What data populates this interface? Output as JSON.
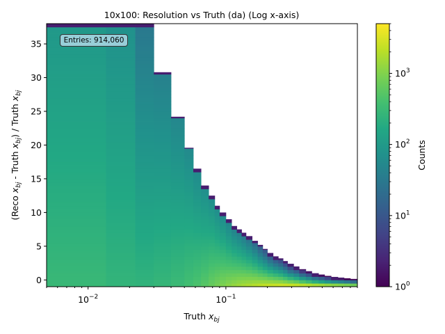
{
  "chart_data": {
    "type": "heatmap",
    "title": "10x100: Resolution vs Truth (da) (Log x-axis)",
    "xlabel": "Truth x_bj",
    "ylabel": "(Reco x_bj - Truth x_bj) / Truth x_bj",
    "xscale": "log",
    "xlim": [
      0.005,
      0.9
    ],
    "ylim": [
      -1,
      38
    ],
    "x_ticks": [
      {
        "value": 0.01,
        "base": "10",
        "exp": "−2"
      },
      {
        "value": 0.1,
        "base": "10",
        "exp": "−1"
      }
    ],
    "y_ticks": [
      "0",
      "5",
      "10",
      "15",
      "20",
      "25",
      "30",
      "35"
    ],
    "colorbar": {
      "label": "Counts",
      "scale": "log",
      "range": [
        1,
        5000
      ],
      "ticks": [
        {
          "value": 1,
          "base": "10",
          "exp": "0"
        },
        {
          "value": 10,
          "base": "10",
          "exp": "1"
        },
        {
          "value": 100,
          "base": "10",
          "exp": "2"
        },
        {
          "value": 1000,
          "base": "10",
          "exp": "3"
        }
      ],
      "colormap": "viridis"
    },
    "entries_label": "Entries: 914,060",
    "columns": [
      {
        "x0": 0.005,
        "x1": 0.0135,
        "ymax": 38,
        "low": 90,
        "high": 300
      },
      {
        "x0": 0.0135,
        "x1": 0.022,
        "ymax": 38,
        "low": 70,
        "high": 260
      },
      {
        "x0": 0.022,
        "x1": 0.03,
        "ymax": 38,
        "low": 30,
        "high": 250
      },
      {
        "x0": 0.03,
        "x1": 0.04,
        "ymax": 30.8,
        "low": 40,
        "high": 280
      },
      {
        "x0": 0.04,
        "x1": 0.05,
        "ymax": 24.2,
        "low": 50,
        "high": 320
      },
      {
        "x0": 0.05,
        "x1": 0.058,
        "ymax": 19.6,
        "low": 55,
        "high": 380
      },
      {
        "x0": 0.058,
        "x1": 0.066,
        "ymax": 16.5,
        "low": 55,
        "high": 450
      },
      {
        "x0": 0.066,
        "x1": 0.075,
        "ymax": 14.0,
        "low": 60,
        "high": 550
      },
      {
        "x0": 0.075,
        "x1": 0.083,
        "ymax": 12.5,
        "low": 60,
        "high": 700
      },
      {
        "x0": 0.083,
        "x1": 0.09,
        "ymax": 11.0,
        "low": 55,
        "high": 850
      },
      {
        "x0": 0.09,
        "x1": 0.1,
        "ymax": 10.0,
        "low": 50,
        "high": 1000
      },
      {
        "x0": 0.1,
        "x1": 0.11,
        "ymax": 9.0,
        "low": 40,
        "high": 1200
      },
      {
        "x0": 0.11,
        "x1": 0.12,
        "ymax": 8.0,
        "low": 35,
        "high": 1400
      },
      {
        "x0": 0.12,
        "x1": 0.13,
        "ymax": 7.5,
        "low": 30,
        "high": 1600
      },
      {
        "x0": 0.13,
        "x1": 0.14,
        "ymax": 7.0,
        "low": 25,
        "high": 1800
      },
      {
        "x0": 0.14,
        "x1": 0.155,
        "ymax": 6.5,
        "low": 20,
        "high": 2000
      },
      {
        "x0": 0.155,
        "x1": 0.17,
        "ymax": 5.8,
        "low": 15,
        "high": 2300
      },
      {
        "x0": 0.17,
        "x1": 0.185,
        "ymax": 5.2,
        "low": 10,
        "high": 2600
      },
      {
        "x0": 0.185,
        "x1": 0.2,
        "ymax": 4.6,
        "low": 8,
        "high": 2900
      },
      {
        "x0": 0.2,
        "x1": 0.22,
        "ymax": 4.0,
        "low": 6,
        "high": 3200
      },
      {
        "x0": 0.22,
        "x1": 0.24,
        "ymax": 3.5,
        "low": 5,
        "high": 3500
      },
      {
        "x0": 0.24,
        "x1": 0.26,
        "ymax": 3.2,
        "low": 4,
        "high": 3800
      },
      {
        "x0": 0.26,
        "x1": 0.28,
        "ymax": 2.8,
        "low": 3,
        "high": 4000
      },
      {
        "x0": 0.28,
        "x1": 0.31,
        "ymax": 2.4,
        "low": 2,
        "high": 4200
      },
      {
        "x0": 0.31,
        "x1": 0.34,
        "ymax": 2.0,
        "low": 2,
        "high": 4300
      },
      {
        "x0": 0.34,
        "x1": 0.38,
        "ymax": 1.6,
        "low": 1.5,
        "high": 4400
      },
      {
        "x0": 0.38,
        "x1": 0.42,
        "ymax": 1.3,
        "low": 1.3,
        "high": 4500
      },
      {
        "x0": 0.42,
        "x1": 0.47,
        "ymax": 1.0,
        "low": 1.2,
        "high": 4600
      },
      {
        "x0": 0.47,
        "x1": 0.52,
        "ymax": 0.8,
        "low": 1.1,
        "high": 4700
      },
      {
        "x0": 0.52,
        "x1": 0.58,
        "ymax": 0.6,
        "low": 1.0,
        "high": 4700
      },
      {
        "x0": 0.58,
        "x1": 0.65,
        "ymax": 0.45,
        "low": 1.0,
        "high": 4800
      },
      {
        "x0": 0.65,
        "x1": 0.72,
        "ymax": 0.35,
        "low": 1.0,
        "high": 4800
      },
      {
        "x0": 0.72,
        "x1": 0.8,
        "ymax": 0.25,
        "low": 1.0,
        "high": 4800
      },
      {
        "x0": 0.8,
        "x1": 0.9,
        "ymax": 0.15,
        "low": 1.0,
        "high": 4800
      }
    ]
  }
}
